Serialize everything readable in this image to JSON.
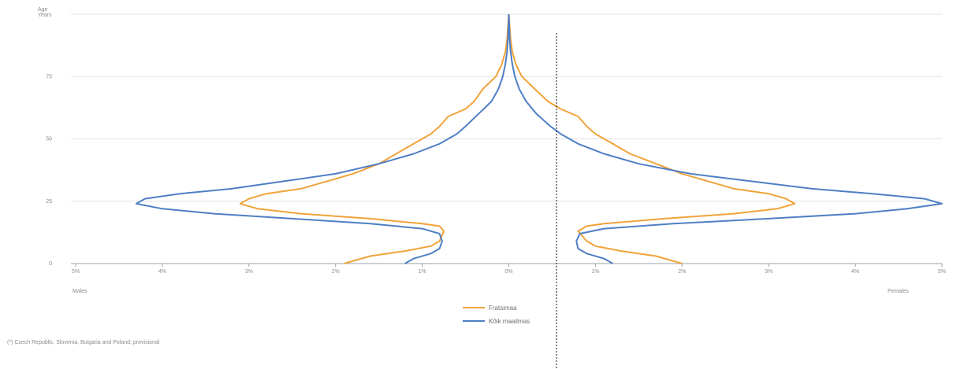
{
  "chart_data": {
    "type": "line",
    "title": "",
    "xlabel": "",
    "ylabel": "",
    "y_label_top": "Age\nYears",
    "left_label": "Males",
    "right_label": "Females",
    "x_ticks": [
      "5%",
      "4%",
      "3%",
      "2%",
      "1%",
      "0%",
      "1%",
      "2%",
      "3%",
      "4%",
      "5%"
    ],
    "y_ticks": [
      "0",
      "25",
      "50",
      "75"
    ],
    "ylim": [
      0,
      100
    ],
    "xlim": [
      -5,
      5
    ],
    "grid": true,
    "legend_position": "bottom-center",
    "footnote": "(*) Czech Republic, Slovenia, Bulgaria and Poland; provisional",
    "series": [
      {
        "name": "Fratsimaa",
        "color": "#f0a33a",
        "male": [
          [
            0,
            1.9
          ],
          [
            3,
            1.6
          ],
          [
            5,
            1.2
          ],
          [
            7,
            0.9
          ],
          [
            9,
            0.8
          ],
          [
            13,
            0.75
          ],
          [
            15,
            0.8
          ],
          [
            16,
            1.0
          ],
          [
            18,
            1.6
          ],
          [
            20,
            2.4
          ],
          [
            22,
            2.9
          ],
          [
            24,
            3.1
          ],
          [
            26,
            3.0
          ],
          [
            28,
            2.8
          ],
          [
            30,
            2.4
          ],
          [
            33,
            2.1
          ],
          [
            36,
            1.8
          ],
          [
            40,
            1.5
          ],
          [
            44,
            1.3
          ],
          [
            48,
            1.1
          ],
          [
            52,
            0.9
          ],
          [
            55,
            0.8
          ],
          [
            59,
            0.7
          ],
          [
            62,
            0.5
          ],
          [
            65,
            0.4
          ],
          [
            70,
            0.3
          ],
          [
            75,
            0.15
          ],
          [
            80,
            0.08
          ],
          [
            85,
            0.04
          ],
          [
            90,
            0.02
          ],
          [
            100,
            0.0
          ]
        ],
        "female": [
          [
            0,
            2.0
          ],
          [
            3,
            1.7
          ],
          [
            5,
            1.3
          ],
          [
            7,
            1.0
          ],
          [
            9,
            0.9
          ],
          [
            13,
            0.8
          ],
          [
            15,
            0.9
          ],
          [
            16,
            1.1
          ],
          [
            18,
            1.8
          ],
          [
            20,
            2.6
          ],
          [
            22,
            3.1
          ],
          [
            24,
            3.3
          ],
          [
            26,
            3.2
          ],
          [
            28,
            3.0
          ],
          [
            30,
            2.6
          ],
          [
            33,
            2.3
          ],
          [
            36,
            2.0
          ],
          [
            40,
            1.7
          ],
          [
            44,
            1.4
          ],
          [
            48,
            1.2
          ],
          [
            52,
            1.0
          ],
          [
            55,
            0.9
          ],
          [
            59,
            0.8
          ],
          [
            62,
            0.6
          ],
          [
            65,
            0.45
          ],
          [
            70,
            0.3
          ],
          [
            75,
            0.15
          ],
          [
            80,
            0.08
          ],
          [
            85,
            0.04
          ],
          [
            90,
            0.02
          ],
          [
            100,
            0.0
          ]
        ]
      },
      {
        "name": "Kõik maailmas",
        "color": "#4f7fc4",
        "male": [
          [
            0,
            1.2
          ],
          [
            2,
            1.1
          ],
          [
            4,
            0.9
          ],
          [
            6,
            0.8
          ],
          [
            9,
            0.77
          ],
          [
            12,
            0.8
          ],
          [
            14,
            1.0
          ],
          [
            16,
            1.6
          ],
          [
            18,
            2.5
          ],
          [
            20,
            3.4
          ],
          [
            22,
            4.0
          ],
          [
            24,
            4.3
          ],
          [
            26,
            4.2
          ],
          [
            28,
            3.8
          ],
          [
            30,
            3.2
          ],
          [
            33,
            2.6
          ],
          [
            36,
            2.0
          ],
          [
            40,
            1.5
          ],
          [
            44,
            1.1
          ],
          [
            48,
            0.8
          ],
          [
            52,
            0.6
          ],
          [
            55,
            0.5
          ],
          [
            60,
            0.35
          ],
          [
            65,
            0.2
          ],
          [
            70,
            0.12
          ],
          [
            75,
            0.07
          ],
          [
            80,
            0.04
          ],
          [
            85,
            0.02
          ],
          [
            90,
            0.01
          ],
          [
            100,
            0.0
          ]
        ],
        "female": [
          [
            0,
            1.2
          ],
          [
            2,
            1.1
          ],
          [
            4,
            0.9
          ],
          [
            6,
            0.8
          ],
          [
            9,
            0.78
          ],
          [
            12,
            0.82
          ],
          [
            14,
            1.1
          ],
          [
            16,
            1.9
          ],
          [
            18,
            3.0
          ],
          [
            20,
            4.0
          ],
          [
            22,
            4.6
          ],
          [
            24,
            5.0
          ],
          [
            26,
            4.8
          ],
          [
            28,
            4.2
          ],
          [
            30,
            3.5
          ],
          [
            33,
            2.8
          ],
          [
            36,
            2.1
          ],
          [
            40,
            1.5
          ],
          [
            44,
            1.1
          ],
          [
            48,
            0.8
          ],
          [
            52,
            0.6
          ],
          [
            55,
            0.48
          ],
          [
            60,
            0.32
          ],
          [
            65,
            0.2
          ],
          [
            70,
            0.12
          ],
          [
            75,
            0.07
          ],
          [
            80,
            0.04
          ],
          [
            85,
            0.02
          ],
          [
            90,
            0.01
          ],
          [
            100,
            0.0
          ]
        ]
      }
    ]
  }
}
